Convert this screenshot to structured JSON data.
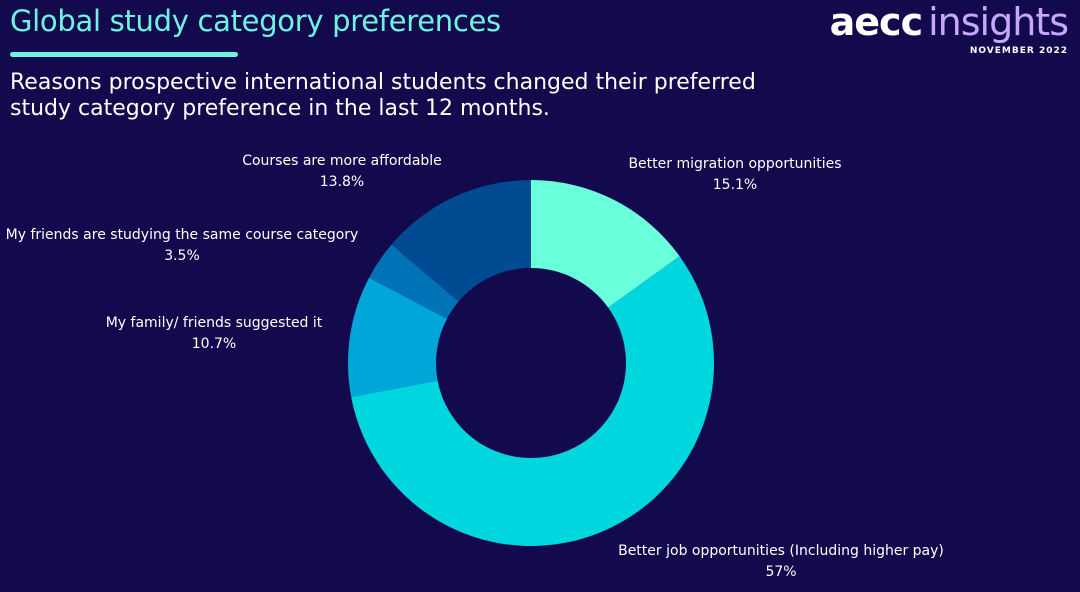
{
  "header": {
    "title": "Global study category preferences",
    "subtitle": "Reasons prospective international students changed their preferred study category preference in the last 12 months.",
    "logo_primary": "aecc",
    "logo_secondary": "insights",
    "date": "NOVEMBER 2022"
  },
  "chart_data": {
    "type": "pie",
    "variant": "donut",
    "title": "Reasons prospective international students changed their preferred study category preference in the last 12 months.",
    "slices": [
      {
        "label": "Better migration opportunities",
        "value": 15.1,
        "display": "15.1%",
        "color": "#6affdb"
      },
      {
        "label": "Better job opportunities (Including higher pay)",
        "value": 57,
        "display": "57%",
        "color": "#00d6dd"
      },
      {
        "label": "My family/ friends suggested it",
        "value": 10.7,
        "display": "10.7%",
        "color": "#00a6d8"
      },
      {
        "label": "My friends are studying the same course category",
        "value": 3.5,
        "display": "3.5%",
        "color": "#0073b6"
      },
      {
        "label": "Courses are more affordable",
        "value": 13.8,
        "display": "13.8%",
        "color": "#004a91"
      }
    ]
  }
}
